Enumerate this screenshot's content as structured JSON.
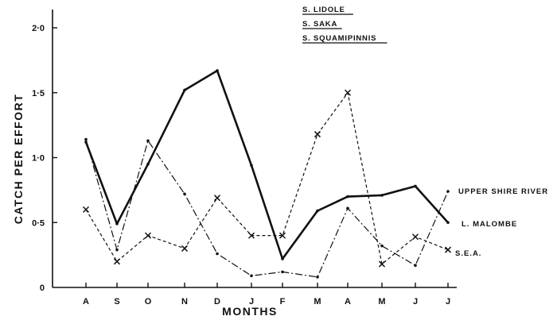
{
  "chart_data": {
    "type": "line",
    "title": "",
    "xlabel": "MONTHS",
    "ylabel": "CATCH PER EFFORT",
    "ylim": [
      0,
      2.0
    ],
    "yticks": [
      {
        "value": 0,
        "label": "0"
      },
      {
        "value": 0.5,
        "label": "0·5"
      },
      {
        "value": 1.0,
        "label": "1·0"
      },
      {
        "value": 1.5,
        "label": "1·5"
      },
      {
        "value": 2.0,
        "label": "2·0"
      }
    ],
    "categories": [
      "A",
      "S",
      "O",
      "N",
      "D",
      "J",
      "F",
      "M",
      "A",
      "M",
      "J",
      "J"
    ],
    "grid": false,
    "legend_title_lines": [
      "S. LIDOLE",
      "S. SAKA",
      "S. SQUAMIPINNIS"
    ],
    "legend_position": "top-center",
    "series": [
      {
        "name": "L. MALOMBE",
        "style": "solid",
        "marker": "dot",
        "values": [
          1.12,
          0.49,
          0.95,
          1.52,
          1.67,
          0.94,
          0.22,
          0.59,
          0.7,
          0.71,
          0.78,
          0.5
        ]
      },
      {
        "name": "UPPER SHIRE RIVER",
        "style": "dash-dot",
        "marker": "dot",
        "values": [
          1.14,
          0.29,
          1.13,
          0.72,
          0.26,
          0.09,
          0.12,
          0.08,
          0.61,
          0.32,
          0.17,
          0.74
        ]
      },
      {
        "name": "S.E.A.",
        "style": "dashed",
        "marker": "x",
        "values": [
          0.6,
          0.2,
          0.4,
          0.3,
          0.69,
          0.4,
          0.4,
          1.18,
          1.5,
          0.18,
          0.39,
          0.29
        ]
      }
    ]
  }
}
